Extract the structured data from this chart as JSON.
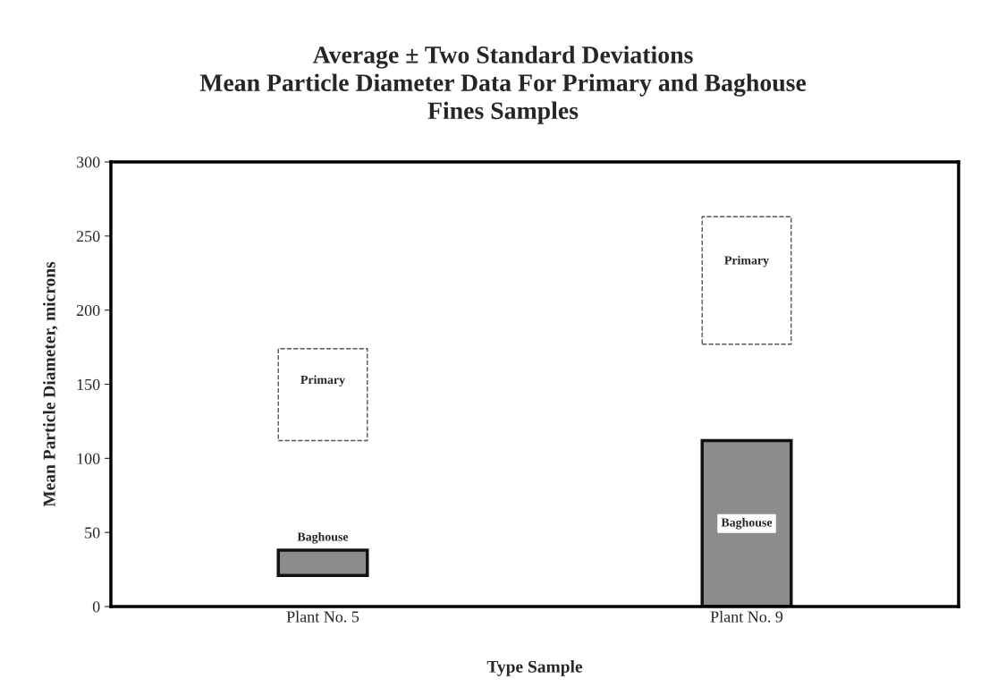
{
  "chart_data": {
    "type": "bar",
    "title": "Average ± Two Standard Deviations\nMean Particle Diameter Data For Primary and Baghouse\nFines Samples",
    "xlabel": "Type Sample",
    "ylabel": "Mean Particle Diameter, microns",
    "categories": [
      "Plant No. 5",
      "Plant No. 9"
    ],
    "series": [
      {
        "name": "Primary",
        "color": "#ffffff",
        "base": [
          112,
          177
        ],
        "values": [
          62,
          86
        ]
      },
      {
        "name": "Baghouse",
        "color": "#8c8c8c",
        "base": [
          21,
          0
        ],
        "values": [
          17,
          112
        ]
      }
    ],
    "ylim": [
      0,
      300
    ],
    "yticks": [
      0,
      50,
      100,
      150,
      200,
      250,
      300
    ],
    "grid": false,
    "legend": false
  }
}
